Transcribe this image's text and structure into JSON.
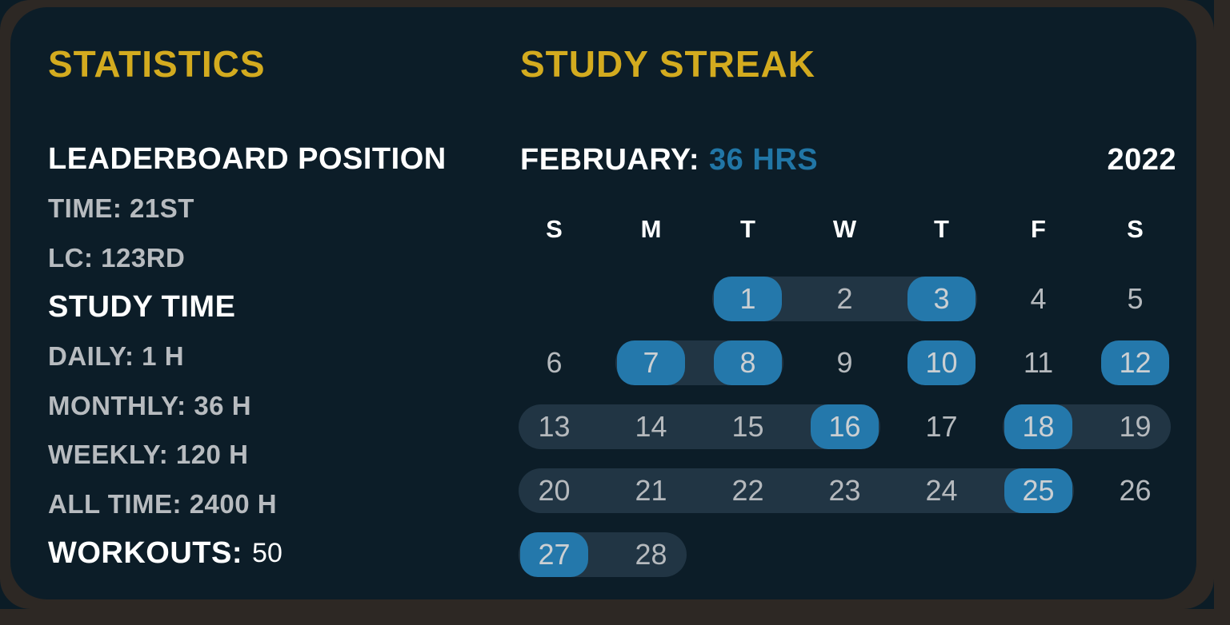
{
  "theme": {
    "page_bg": "#0b1c26",
    "frame": "#2d2824",
    "card_bg": "#0c1d28",
    "yellow": "#d3ab1f",
    "white": "#ffffff",
    "gray": "#b7bbbf",
    "blue": "#2478ab",
    "blue_text": "#2176a6",
    "band": "#213544",
    "day_text": "#b5b9bd",
    "pill_text": "#cbcfd2"
  },
  "statistics": {
    "title": "STATISTICS",
    "items": [
      {
        "style": "header",
        "text": "LEADERBOARD POSITION",
        "name": "leaderboard-position-header"
      },
      {
        "style": "stat",
        "text": "TIME: 21ST",
        "name": "leaderboard-time-rank"
      },
      {
        "style": "stat",
        "text": "LC: 123RD",
        "name": "leaderboard-lc-rank"
      },
      {
        "style": "header",
        "text": "STUDY TIME",
        "name": "study-time-header"
      },
      {
        "style": "stat",
        "text": "DAILY: 1 H",
        "name": "study-time-daily"
      },
      {
        "style": "stat",
        "text": "MONTHLY: 36 H",
        "name": "study-time-monthly"
      },
      {
        "style": "stat",
        "text": "WEEKLY: 120 H",
        "name": "study-time-weekly"
      },
      {
        "style": "stat",
        "text": "ALL TIME: 2400 H",
        "name": "study-time-all-time"
      },
      {
        "style": "workouts",
        "label": "WORKOUTS:",
        "value": "50",
        "name": "workouts-count"
      }
    ]
  },
  "streak": {
    "title": "STUDY STREAK",
    "month_label": "FEBRUARY:",
    "month_hours": "36 HRS",
    "year": "2022"
  },
  "calendar": {
    "day_headers": [
      "S",
      "M",
      "T",
      "W",
      "T",
      "F",
      "S"
    ],
    "first_day_column": 2,
    "days_in_month": 28,
    "highlighted_days": [
      1,
      3,
      7,
      8,
      10,
      12,
      16,
      18,
      25,
      27
    ],
    "streak_bands": [
      [
        1,
        3
      ],
      [
        7,
        8
      ],
      [
        13,
        16
      ],
      [
        18,
        19
      ],
      [
        20,
        25
      ],
      [
        27,
        28
      ]
    ]
  }
}
